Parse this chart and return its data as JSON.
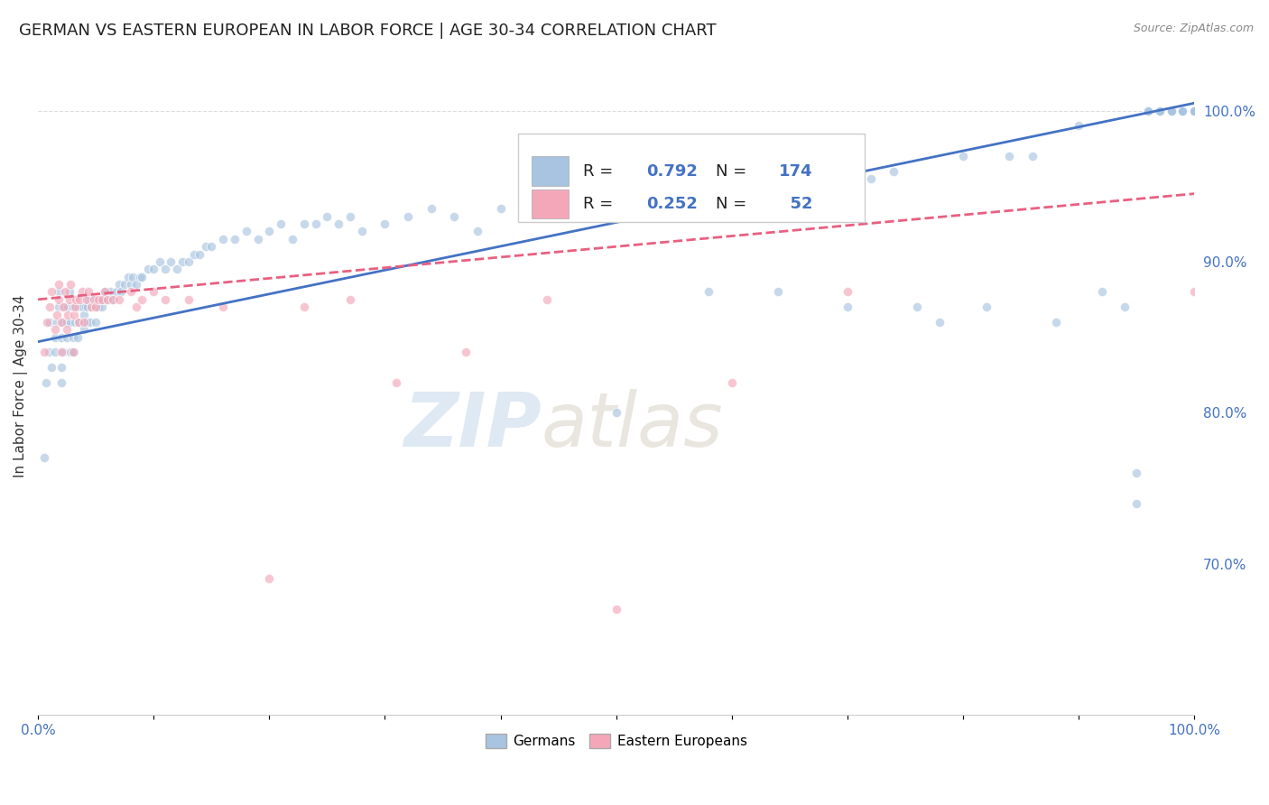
{
  "title": "GERMAN VS EASTERN EUROPEAN IN LABOR FORCE | AGE 30-34 CORRELATION CHART",
  "source": "Source: ZipAtlas.com",
  "ylabel": "In Labor Force | Age 30-34",
  "xlim": [
    0.0,
    1.0
  ],
  "ylim": [
    0.6,
    1.035
  ],
  "y_ticks_right": [
    0.7,
    0.8,
    0.9,
    1.0
  ],
  "y_tick_labels_right": [
    "70.0%",
    "80.0%",
    "90.0%",
    "100.0%"
  ],
  "blue_R": 0.792,
  "blue_N": 174,
  "pink_R": 0.252,
  "pink_N": 52,
  "blue_color": "#a8c4e0",
  "pink_color": "#f4a7b9",
  "blue_line_color": "#4472c4",
  "pink_line_color": "#e86080",
  "watermark_zip": "ZIP",
  "watermark_atlas": "atlas",
  "blue_scatter_x": [
    0.005,
    0.007,
    0.009,
    0.01,
    0.012,
    0.015,
    0.015,
    0.016,
    0.018,
    0.018,
    0.02,
    0.02,
    0.02,
    0.022,
    0.022,
    0.023,
    0.025,
    0.025,
    0.026,
    0.027,
    0.028,
    0.028,
    0.03,
    0.03,
    0.031,
    0.032,
    0.033,
    0.034,
    0.035,
    0.035,
    0.036,
    0.037,
    0.038,
    0.039,
    0.04,
    0.04,
    0.041,
    0.042,
    0.043,
    0.044,
    0.045,
    0.046,
    0.047,
    0.048,
    0.05,
    0.05,
    0.051,
    0.052,
    0.053,
    0.055,
    0.056,
    0.058,
    0.06,
    0.062,
    0.065,
    0.068,
    0.07,
    0.072,
    0.075,
    0.078,
    0.08,
    0.082,
    0.085,
    0.088,
    0.09,
    0.095,
    0.1,
    0.105,
    0.11,
    0.115,
    0.12,
    0.125,
    0.13,
    0.135,
    0.14,
    0.145,
    0.15,
    0.16,
    0.17,
    0.18,
    0.19,
    0.2,
    0.21,
    0.22,
    0.23,
    0.24,
    0.25,
    0.26,
    0.27,
    0.28,
    0.3,
    0.32,
    0.34,
    0.36,
    0.38,
    0.4,
    0.42,
    0.44,
    0.46,
    0.48,
    0.5,
    0.52,
    0.54,
    0.56,
    0.58,
    0.6,
    0.62,
    0.64,
    0.66,
    0.68,
    0.7,
    0.72,
    0.74,
    0.76,
    0.78,
    0.8,
    0.82,
    0.84,
    0.86,
    0.88,
    0.9,
    0.92,
    0.94,
    0.95,
    0.95,
    0.96,
    0.96,
    0.96,
    0.97,
    0.97,
    0.97,
    0.97,
    0.97,
    0.97,
    0.98,
    0.98,
    0.98,
    0.98,
    0.98,
    0.98,
    0.98,
    0.98,
    0.99,
    0.99,
    0.99,
    0.99,
    0.99,
    0.99,
    0.99,
    1.0,
    1.0,
    1.0,
    1.0,
    1.0,
    1.0,
    1.0,
    1.0,
    1.0,
    1.0,
    1.0,
    1.0,
    1.0,
    1.0,
    1.0,
    1.0,
    1.0,
    1.0,
    1.0,
    1.0,
    1.0,
    1.0,
    1.0,
    1.0,
    1.0
  ],
  "blue_scatter_y": [
    0.77,
    0.82,
    0.84,
    0.86,
    0.83,
    0.84,
    0.85,
    0.86,
    0.87,
    0.88,
    0.82,
    0.83,
    0.85,
    0.84,
    0.86,
    0.87,
    0.85,
    0.86,
    0.87,
    0.88,
    0.84,
    0.86,
    0.85,
    0.87,
    0.84,
    0.86,
    0.87,
    0.85,
    0.86,
    0.87,
    0.86,
    0.87,
    0.86,
    0.87,
    0.855,
    0.865,
    0.87,
    0.86,
    0.87,
    0.875,
    0.86,
    0.87,
    0.875,
    0.87,
    0.86,
    0.87,
    0.875,
    0.87,
    0.875,
    0.87,
    0.875,
    0.88,
    0.875,
    0.88,
    0.875,
    0.88,
    0.885,
    0.88,
    0.885,
    0.89,
    0.885,
    0.89,
    0.885,
    0.89,
    0.89,
    0.895,
    0.895,
    0.9,
    0.895,
    0.9,
    0.895,
    0.9,
    0.9,
    0.905,
    0.905,
    0.91,
    0.91,
    0.915,
    0.915,
    0.92,
    0.915,
    0.92,
    0.925,
    0.915,
    0.925,
    0.925,
    0.93,
    0.925,
    0.93,
    0.92,
    0.925,
    0.93,
    0.935,
    0.93,
    0.92,
    0.935,
    0.93,
    0.94,
    0.935,
    0.94,
    0.8,
    0.94,
    0.935,
    0.94,
    0.88,
    0.94,
    0.945,
    0.88,
    0.95,
    0.955,
    0.87,
    0.955,
    0.96,
    0.87,
    0.86,
    0.97,
    0.87,
    0.97,
    0.97,
    0.86,
    0.99,
    0.88,
    0.87,
    0.74,
    0.76,
    1.0,
    1.0,
    1.0,
    1.0,
    1.0,
    1.0,
    1.0,
    1.0,
    1.0,
    1.0,
    1.0,
    1.0,
    1.0,
    1.0,
    1.0,
    1.0,
    1.0,
    1.0,
    1.0,
    1.0,
    1.0,
    1.0,
    1.0,
    1.0,
    1.0,
    1.0,
    1.0,
    1.0,
    1.0,
    1.0,
    1.0,
    1.0,
    1.0,
    1.0,
    1.0,
    1.0,
    1.0,
    1.0,
    1.0,
    1.0,
    1.0,
    1.0,
    1.0,
    1.0,
    1.0,
    1.0,
    1.0,
    1.0,
    1.0
  ],
  "pink_scatter_x": [
    0.005,
    0.008,
    0.01,
    0.012,
    0.015,
    0.016,
    0.018,
    0.018,
    0.02,
    0.02,
    0.022,
    0.023,
    0.025,
    0.026,
    0.027,
    0.028,
    0.03,
    0.031,
    0.032,
    0.033,
    0.035,
    0.036,
    0.038,
    0.04,
    0.042,
    0.044,
    0.046,
    0.048,
    0.05,
    0.052,
    0.055,
    0.058,
    0.06,
    0.065,
    0.07,
    0.08,
    0.085,
    0.09,
    0.1,
    0.11,
    0.13,
    0.16,
    0.2,
    0.23,
    0.27,
    0.31,
    0.37,
    0.44,
    0.5,
    0.6,
    0.7,
    1.0
  ],
  "pink_scatter_y": [
    0.84,
    0.86,
    0.87,
    0.88,
    0.855,
    0.865,
    0.875,
    0.885,
    0.84,
    0.86,
    0.87,
    0.88,
    0.855,
    0.865,
    0.875,
    0.885,
    0.84,
    0.865,
    0.87,
    0.875,
    0.86,
    0.875,
    0.88,
    0.86,
    0.875,
    0.88,
    0.87,
    0.875,
    0.87,
    0.875,
    0.875,
    0.88,
    0.875,
    0.875,
    0.875,
    0.88,
    0.87,
    0.875,
    0.88,
    0.875,
    0.875,
    0.87,
    0.69,
    0.87,
    0.875,
    0.82,
    0.84,
    0.875,
    0.67,
    0.82,
    0.88,
    0.88
  ],
  "blue_trend_y_start": 0.847,
  "blue_trend_y_end": 1.005,
  "pink_trend_y_start": 0.875,
  "pink_trend_y_end": 0.945,
  "background_color": "#ffffff",
  "grid_color": "#dddddd",
  "title_fontsize": 13,
  "axis_label_fontsize": 11,
  "tick_fontsize": 11,
  "scatter_size": 55,
  "scatter_alpha": 0.65
}
